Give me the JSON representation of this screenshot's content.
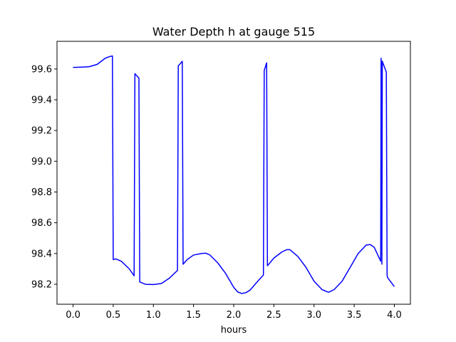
{
  "chart_data": {
    "type": "line",
    "title": "Water Depth h at gauge 515",
    "xlabel": "hours",
    "ylabel": "",
    "xlim": [
      -0.2,
      4.2
    ],
    "ylim": [
      98.07,
      99.78
    ],
    "xticks": [
      0.0,
      0.5,
      1.0,
      1.5,
      2.0,
      2.5,
      3.0,
      3.5,
      4.0
    ],
    "yticks": [
      98.2,
      98.4,
      98.6,
      98.8,
      99.0,
      99.2,
      99.4,
      99.6
    ],
    "xtick_labels": [
      "0.0",
      "0.5",
      "1.0",
      "1.5",
      "2.0",
      "2.5",
      "3.0",
      "3.5",
      "4.0"
    ],
    "ytick_labels": [
      "98.2",
      "98.4",
      "98.6",
      "98.8",
      "99.0",
      "99.2",
      "99.4",
      "99.6"
    ],
    "grid": false,
    "series": [
      {
        "color": "#0000ff",
        "x": [
          0.0,
          0.1,
          0.2,
          0.3,
          0.4,
          0.45,
          0.49,
          0.5,
          0.53,
          0.6,
          0.7,
          0.76,
          0.77,
          0.82,
          0.83,
          0.9,
          1.0,
          1.1,
          1.2,
          1.3,
          1.31,
          1.36,
          1.37,
          1.42,
          1.5,
          1.6,
          1.65,
          1.7,
          1.8,
          1.9,
          2.0,
          2.05,
          2.1,
          2.15,
          2.2,
          2.3,
          2.37,
          2.38,
          2.41,
          2.42,
          2.5,
          2.6,
          2.66,
          2.7,
          2.8,
          2.9,
          3.0,
          3.1,
          3.18,
          3.25,
          3.35,
          3.45,
          3.55,
          3.65,
          3.7,
          3.75,
          3.83,
          3.835,
          3.84,
          3.845,
          3.85,
          3.9,
          3.91,
          3.92,
          4.0
        ],
        "y": [
          99.61,
          99.612,
          99.615,
          99.63,
          99.67,
          99.68,
          99.685,
          98.36,
          98.365,
          98.35,
          98.3,
          98.255,
          99.57,
          99.54,
          98.215,
          98.2,
          98.198,
          98.205,
          98.24,
          98.29,
          99.62,
          99.65,
          98.33,
          98.36,
          98.39,
          98.4,
          98.402,
          98.392,
          98.34,
          98.27,
          98.18,
          98.15,
          98.14,
          98.145,
          98.16,
          98.22,
          98.26,
          99.59,
          99.64,
          98.32,
          98.37,
          98.41,
          98.425,
          98.425,
          98.38,
          98.31,
          98.22,
          98.165,
          98.148,
          98.165,
          98.22,
          98.31,
          98.4,
          98.455,
          98.458,
          98.44,
          98.35,
          99.67,
          99.6,
          98.33,
          99.65,
          99.58,
          98.255,
          98.24,
          98.185
        ]
      }
    ]
  }
}
